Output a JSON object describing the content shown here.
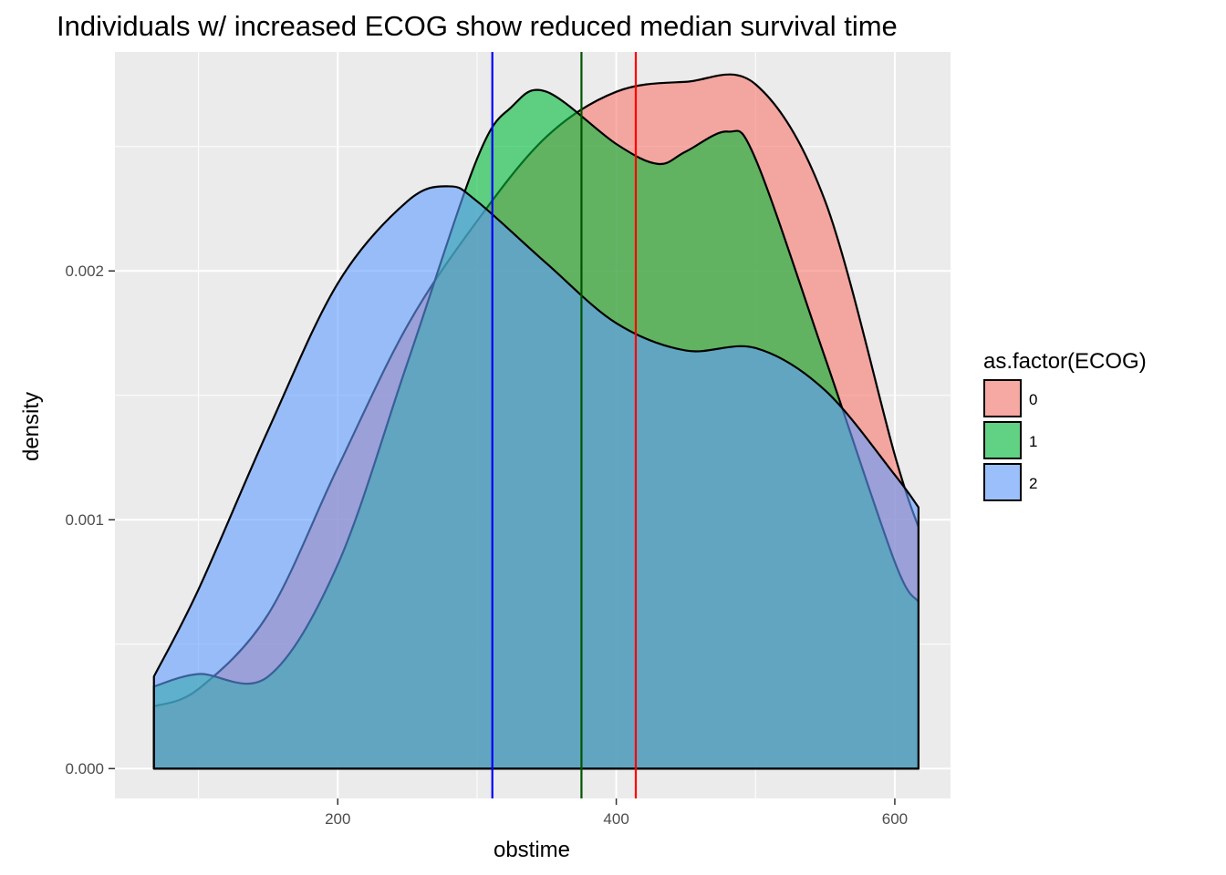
{
  "chart_data": {
    "type": "area",
    "title": "Individuals w/ increased ECOG show reduced median survival time",
    "xlabel": "obstime",
    "ylabel": "density",
    "xlim": [
      40,
      640
    ],
    "ylim": [
      -0.00012,
      0.00288
    ],
    "x_ticks": [
      200,
      400,
      600
    ],
    "x_tick_labels": [
      "200",
      "400",
      "600"
    ],
    "y_ticks": [
      0,
      0.001,
      0.002
    ],
    "y_tick_labels": [
      "0.000",
      "0.001",
      "0.002"
    ],
    "grid": true,
    "legend_title": "as.factor(ECOG)",
    "legend_position": "right",
    "series": [
      {
        "name": "0",
        "fill": "#F8766D",
        "x": [
          68,
          100,
          150,
          200,
          250,
          300,
          350,
          400,
          450,
          500,
          550,
          600,
          617
        ],
        "y": [
          0.00025,
          0.00032,
          0.00062,
          0.00121,
          0.00178,
          0.0022,
          0.00254,
          0.00272,
          0.00276,
          0.00275,
          0.00228,
          0.00126,
          0.00097
        ]
      },
      {
        "name": "1",
        "fill": "#00BA38",
        "x": [
          68,
          100,
          150,
          200,
          250,
          300,
          325,
          350,
          400,
          430,
          450,
          480,
          500,
          550,
          600,
          617
        ],
        "y": [
          0.00033,
          0.00038,
          0.00037,
          0.00082,
          0.00163,
          0.00245,
          0.00266,
          0.00272,
          0.00251,
          0.00243,
          0.00248,
          0.00256,
          0.00245,
          0.00165,
          0.00083,
          0.00067
        ]
      },
      {
        "name": "2",
        "fill": "#619CFF",
        "x": [
          68,
          100,
          150,
          200,
          250,
          280,
          300,
          350,
          400,
          450,
          500,
          550,
          600,
          617
        ],
        "y": [
          0.00037,
          0.00072,
          0.00136,
          0.00195,
          0.00228,
          0.00234,
          0.00228,
          0.00203,
          0.00179,
          0.00168,
          0.00169,
          0.00152,
          0.00118,
          0.00105
        ]
      }
    ],
    "vlines": [
      {
        "name": "median-ECOG-0",
        "x": 414,
        "color": "#FF0000"
      },
      {
        "name": "median-ECOG-1",
        "x": 375,
        "color": "#005500"
      },
      {
        "name": "median-ECOG-2",
        "x": 311,
        "color": "#0000FF"
      }
    ],
    "panel_background": "#EBEBEB",
    "grid_color": "#FFFFFF",
    "fill_opacity": 0.6
  }
}
